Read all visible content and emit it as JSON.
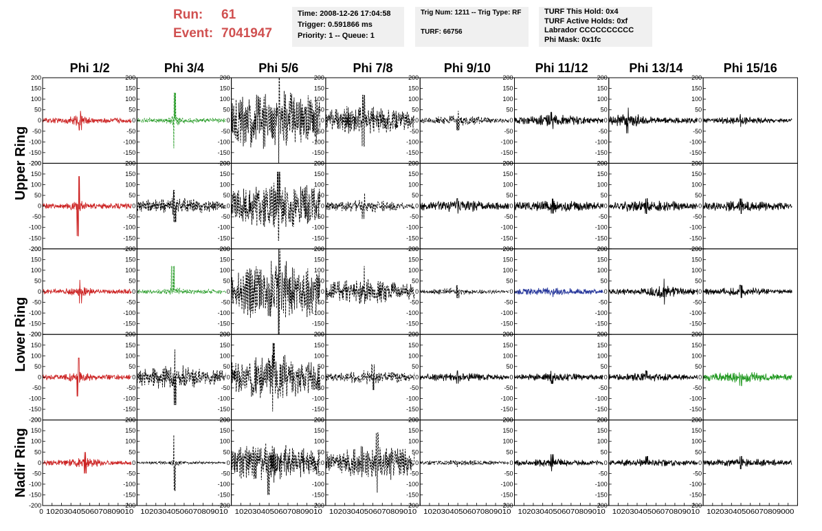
{
  "header": {
    "run_label": "Run:",
    "run_value": "61",
    "event_label": "Event:",
    "event_value": "7041947",
    "box1": [
      "Time: 2008-12-26 17:04:58",
      "Trigger: 0.591866 ms",
      "Priority: 1 -- Queue: 1"
    ],
    "box2": [
      "Trig Num: 1211 -- Trig Type: RF",
      "",
      "TURF: 66756"
    ],
    "box3": [
      "TURF This Hold: 0x4",
      "TURF Active Holds: 0xf",
      "Labrador CCCCCCCCCC",
      "Phi Mask: 0x1fc"
    ]
  },
  "chart_data": {
    "type": "line",
    "columns": [
      "Phi 1/2",
      "Phi 3/4",
      "Phi 5/6",
      "Phi 7/8",
      "Phi 9/10",
      "Phi 11/12",
      "Phi 13/14",
      "Phi 15/16"
    ],
    "ring_labels": [
      "Upper Ring",
      "Lower Ring",
      "Nadir Ring"
    ],
    "rows": 5,
    "xlim": [
      0,
      100
    ],
    "ylim": [
      -200,
      200
    ],
    "x_ticks": [
      0,
      10,
      20,
      30,
      40,
      50,
      60,
      70,
      80,
      90,
      100
    ],
    "x_tick_labels": [
      "0",
      "10",
      "20",
      "30",
      "40",
      "50",
      "60",
      "70",
      "80",
      "90",
      "100"
    ],
    "x_axis_text": [
      "0",
      "10203040506070809010",
      "10203040506070809010",
      "10203040506070809010",
      "10203040506070809010",
      "10203040506070809010",
      "10203040506070809010",
      "10203040506070809010",
      "10203040506070809000"
    ],
    "y_ticks": [
      200,
      150,
      100,
      50,
      0,
      -50,
      -100,
      -150,
      -200
    ],
    "y_tick_labels": [
      "200",
      "150",
      "100",
      "50",
      "0",
      "-50",
      "-100",
      "-150",
      "-200"
    ],
    "trace_x_range": [
      0,
      94
    ],
    "colors": {
      "red": "#cc2222",
      "green": "#229922",
      "blue": "#223399",
      "black": "#000000"
    },
    "traces": [
      [
        {
          "color": "red",
          "dash": false,
          "amp": 22,
          "peak": 45,
          "burst_center": 40,
          "burst_width": 10
        },
        {
          "color": "green",
          "dash": true,
          "amp": 20,
          "peak": 130,
          "burst_center": 40,
          "burst_width": 6
        },
        {
          "color": "black",
          "dash": true,
          "amp": 110,
          "peak": 200,
          "burst_center": 50,
          "burst_width": 60
        },
        {
          "color": "black",
          "dash": true,
          "amp": 55,
          "peak": 120,
          "burst_center": 40,
          "burst_width": 40
        },
        {
          "color": "black",
          "dash": true,
          "amp": 18,
          "peak": 45,
          "burst_center": 40,
          "burst_width": 30
        },
        {
          "color": "black",
          "dash": false,
          "amp": 22,
          "peak": 40,
          "burst_center": 40,
          "burst_width": 30
        },
        {
          "color": "black",
          "dash": false,
          "amp": 25,
          "peak": 60,
          "burst_center": 20,
          "burst_width": 20
        },
        {
          "color": "black",
          "dash": false,
          "amp": 15,
          "peak": 30,
          "burst_center": 40,
          "burst_width": 30
        }
      ],
      [
        {
          "color": "red",
          "dash": false,
          "amp": 22,
          "peak": 140,
          "burst_center": 38,
          "burst_width": 8
        },
        {
          "color": "black",
          "dash": true,
          "amp": 30,
          "peak": 75,
          "burst_center": 40,
          "burst_width": 40
        },
        {
          "color": "black",
          "dash": true,
          "amp": 90,
          "peak": 160,
          "burst_center": 50,
          "burst_width": 50
        },
        {
          "color": "black",
          "dash": true,
          "amp": 25,
          "peak": 60,
          "burst_center": 40,
          "burst_width": 30
        },
        {
          "color": "black",
          "dash": false,
          "amp": 22,
          "peak": 35,
          "burst_center": 40,
          "burst_width": 40
        },
        {
          "color": "black",
          "dash": false,
          "amp": 22,
          "peak": 35,
          "burst_center": 40,
          "burst_width": 40
        },
        {
          "color": "black",
          "dash": false,
          "amp": 22,
          "peak": 35,
          "burst_center": 40,
          "burst_width": 40
        },
        {
          "color": "black",
          "dash": false,
          "amp": 20,
          "peak": 35,
          "burst_center": 40,
          "burst_width": 40
        }
      ],
      [
        {
          "color": "red",
          "dash": false,
          "amp": 20,
          "peak": 55,
          "burst_center": 40,
          "burst_width": 12
        },
        {
          "color": "green",
          "dash": true,
          "amp": 18,
          "peak": 120,
          "burst_center": 38,
          "burst_width": 8
        },
        {
          "color": "black",
          "dash": true,
          "amp": 110,
          "peak": 200,
          "burst_center": 50,
          "burst_width": 60
        },
        {
          "color": "black",
          "dash": true,
          "amp": 50,
          "peak": 120,
          "burst_center": 40,
          "burst_width": 40
        },
        {
          "color": "black",
          "dash": true,
          "amp": 12,
          "peak": 30,
          "burst_center": 40,
          "burst_width": 30
        },
        {
          "color": "blue",
          "dash": false,
          "amp": 14,
          "peak": 25,
          "burst_center": 40,
          "burst_width": 40
        },
        {
          "color": "black",
          "dash": false,
          "amp": 25,
          "peak": 60,
          "burst_center": 60,
          "burst_width": 15
        },
        {
          "color": "black",
          "dash": false,
          "amp": 15,
          "peak": 30,
          "burst_center": 40,
          "burst_width": 40
        }
      ],
      [
        {
          "color": "red",
          "dash": false,
          "amp": 22,
          "peak": 90,
          "burst_center": 38,
          "burst_width": 10
        },
        {
          "color": "black",
          "dash": true,
          "amp": 45,
          "peak": 130,
          "burst_center": 40,
          "burst_width": 40
        },
        {
          "color": "black",
          "dash": true,
          "amp": 80,
          "peak": 160,
          "burst_center": 45,
          "burst_width": 50
        },
        {
          "color": "black",
          "dash": true,
          "amp": 25,
          "peak": 60,
          "burst_center": 50,
          "burst_width": 40
        },
        {
          "color": "black",
          "dash": false,
          "amp": 15,
          "peak": 30,
          "burst_center": 40,
          "burst_width": 40
        },
        {
          "color": "black",
          "dash": false,
          "amp": 15,
          "peak": 30,
          "burst_center": 40,
          "burst_width": 40
        },
        {
          "color": "black",
          "dash": false,
          "amp": 15,
          "peak": 30,
          "burst_center": 40,
          "burst_width": 40
        },
        {
          "color": "green",
          "dash": false,
          "amp": 20,
          "peak": 40,
          "burst_center": 40,
          "burst_width": 40
        }
      ],
      [
        {
          "color": "red",
          "dash": false,
          "amp": 20,
          "peak": 50,
          "burst_center": 45,
          "burst_width": 15
        },
        {
          "color": "black",
          "dash": true,
          "amp": 12,
          "peak": 130,
          "burst_center": 40,
          "burst_width": 5
        },
        {
          "color": "black",
          "dash": true,
          "amp": 70,
          "peak": 150,
          "burst_center": 40,
          "burst_width": 50
        },
        {
          "color": "black",
          "dash": true,
          "amp": 65,
          "peak": 140,
          "burst_center": 55,
          "burst_width": 40
        },
        {
          "color": "black",
          "dash": true,
          "amp": 10,
          "peak": 20,
          "burst_center": 40,
          "burst_width": 40
        },
        {
          "color": "black",
          "dash": false,
          "amp": 14,
          "peak": 40,
          "burst_center": 40,
          "burst_width": 40
        },
        {
          "color": "black",
          "dash": false,
          "amp": 14,
          "peak": 30,
          "burst_center": 40,
          "burst_width": 40
        },
        {
          "color": "black",
          "dash": false,
          "amp": 15,
          "peak": 30,
          "burst_center": 40,
          "burst_width": 40
        }
      ]
    ]
  }
}
